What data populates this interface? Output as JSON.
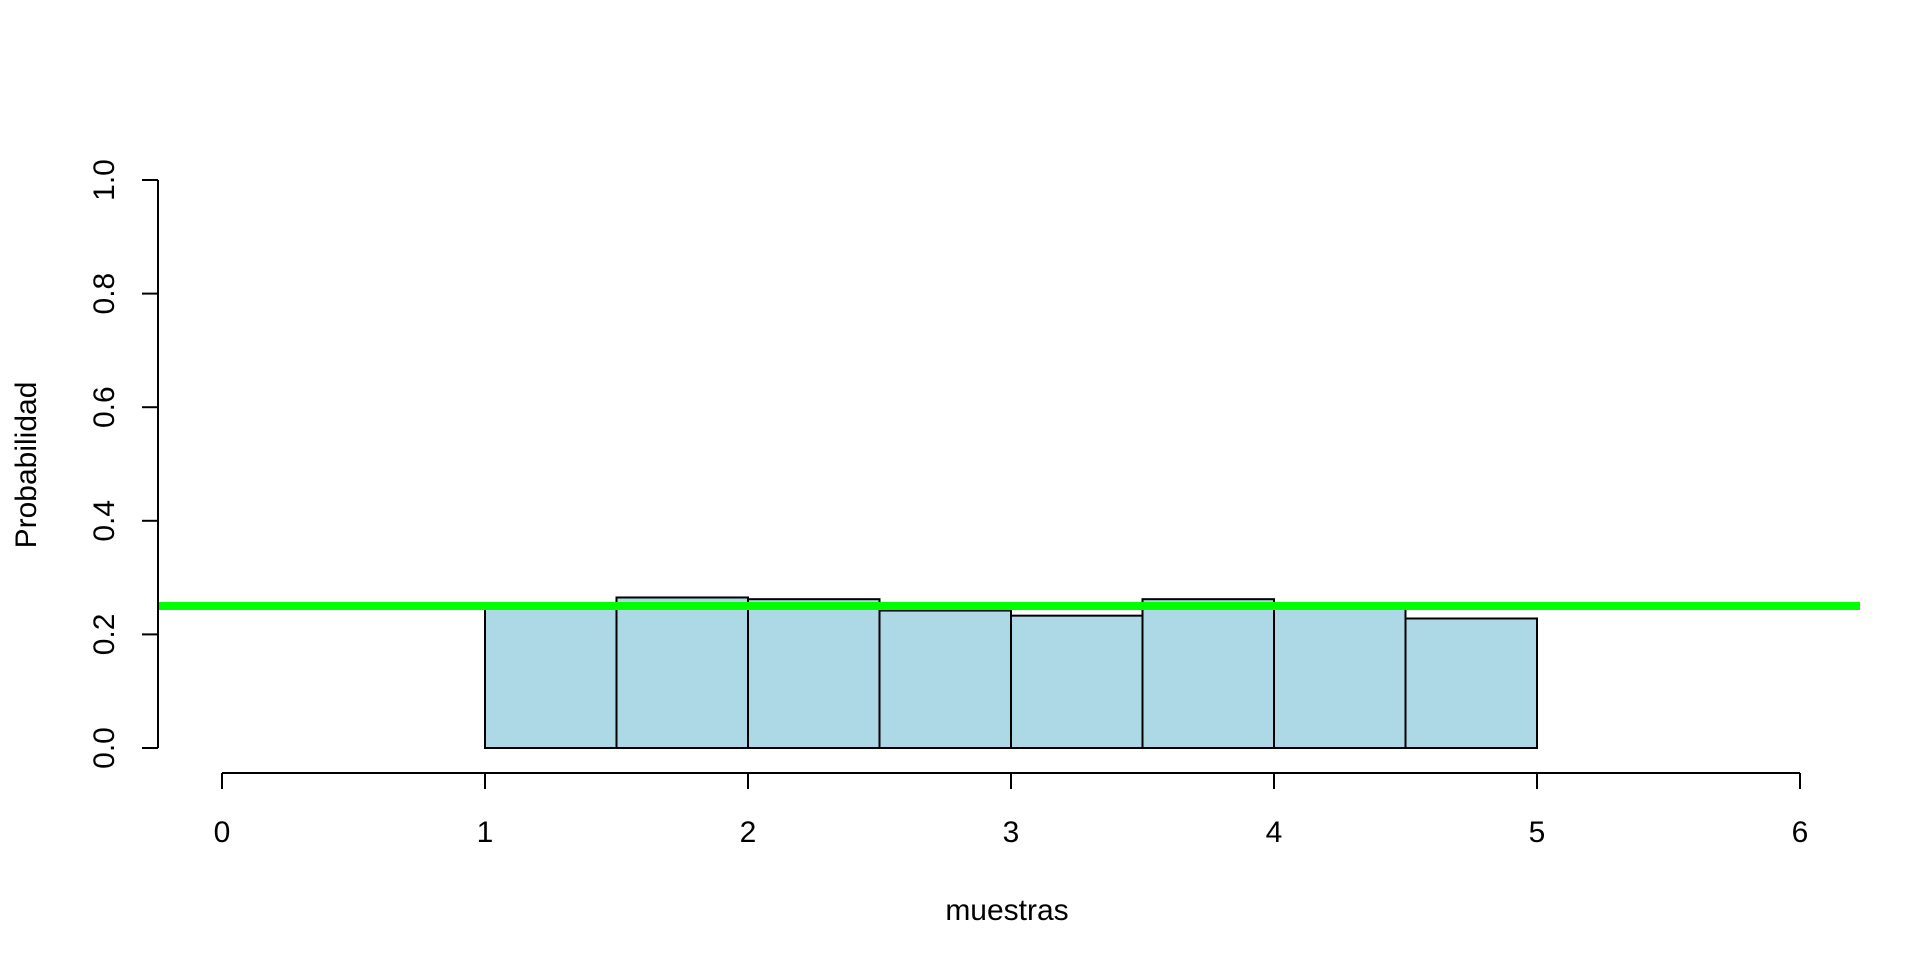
{
  "chart_data": {
    "type": "bar",
    "subtype": "histogram",
    "xlabel": "muestras",
    "ylabel": "Probabilidad",
    "xlim": [
      0,
      6
    ],
    "ylim": [
      0,
      1
    ],
    "xticks": [
      "0",
      "1",
      "2",
      "3",
      "4",
      "5",
      "6"
    ],
    "yticks": [
      "0.0",
      "0.2",
      "0.4",
      "0.6",
      "0.8",
      "1.0"
    ],
    "bins": [
      {
        "start": 1.0,
        "end": 1.5,
        "value": 0.25
      },
      {
        "start": 1.5,
        "end": 2.0,
        "value": 0.265
      },
      {
        "start": 2.0,
        "end": 2.5,
        "value": 0.262
      },
      {
        "start": 2.5,
        "end": 3.0,
        "value": 0.242
      },
      {
        "start": 3.0,
        "end": 3.5,
        "value": 0.233
      },
      {
        "start": 3.5,
        "end": 4.0,
        "value": 0.262
      },
      {
        "start": 4.0,
        "end": 4.5,
        "value": 0.25
      },
      {
        "start": 4.5,
        "end": 5.0,
        "value": 0.228
      }
    ],
    "reference_line": {
      "type": "horizontal",
      "y": 0.25,
      "color": "#00ff00"
    },
    "bar_fill": "#add8e6",
    "bar_stroke": "#000000",
    "grid": false,
    "legend": "none"
  }
}
